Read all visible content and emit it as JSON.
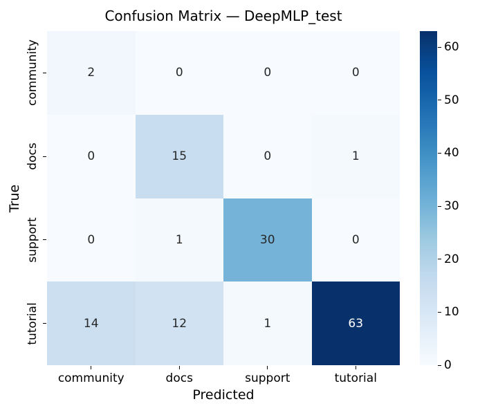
{
  "title": "Confusion Matrix — DeepMLP_test",
  "chart_data": {
    "type": "heatmap",
    "title": "Confusion Matrix — DeepMLP_test",
    "xlabel": "Predicted",
    "ylabel": "True",
    "x_categories": [
      "community",
      "docs",
      "support",
      "tutorial"
    ],
    "y_categories": [
      "community",
      "docs",
      "support",
      "tutorial"
    ],
    "matrix": [
      [
        2,
        0,
        0,
        0
      ],
      [
        0,
        15,
        0,
        1
      ],
      [
        0,
        1,
        30,
        0
      ],
      [
        14,
        12,
        1,
        63
      ]
    ],
    "vmin": 0,
    "vmax": 63,
    "colorbar_ticks": [
      0,
      10,
      20,
      30,
      40,
      50,
      60
    ],
    "colormap_name": "Blues",
    "colormap_anchors": [
      "#f7fbff",
      "#deebf7",
      "#c6dbef",
      "#9ecae1",
      "#6baed6",
      "#4292c6",
      "#2171b5",
      "#08519c",
      "#08306b"
    ],
    "annot_dark_color": "#262626",
    "annot_light_color": "#ffffff",
    "legend_position": "right-colorbar",
    "grid": false
  }
}
